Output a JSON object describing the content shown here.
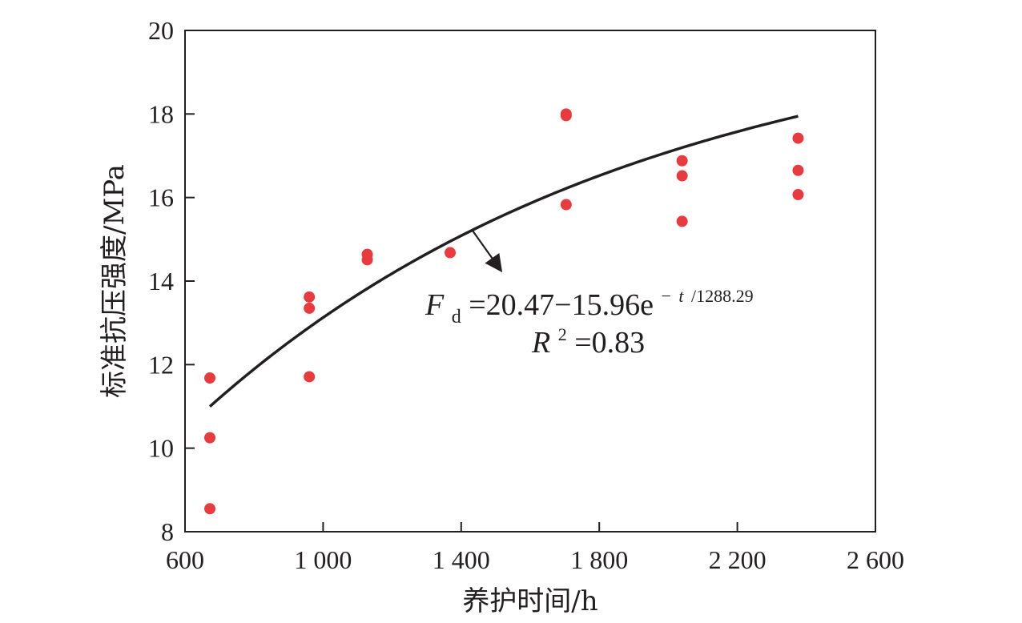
{
  "chart_data": {
    "type": "scatter",
    "title": "",
    "xlabel": "养护时间/h",
    "ylabel": "标准抗压强度/MPa",
    "xlim": [
      600,
      2600
    ],
    "ylim": [
      8,
      20
    ],
    "x_ticks": [
      600,
      1000,
      1400,
      1800,
      2200,
      2600
    ],
    "x_tick_labels": [
      "600",
      "1 000",
      "1 400",
      "1 800",
      "2 200",
      "2 600"
    ],
    "y_ticks": [
      8,
      10,
      12,
      14,
      16,
      18,
      20
    ],
    "y_tick_labels": [
      "8",
      "10",
      "12",
      "14",
      "16",
      "18",
      "20"
    ],
    "grid": false,
    "colors": {
      "points": "#e63b3f",
      "fit_line": "#231f20",
      "axis": "#231f20"
    },
    "series": [
      {
        "type": "scatter",
        "x": [
          672,
          672,
          672,
          960,
          960,
          960,
          1128,
          1128,
          1368,
          1704,
          1704,
          1704,
          2040,
          2040,
          2040,
          2376,
          2376,
          2376
        ],
        "y": [
          11.68,
          10.25,
          8.55,
          13.62,
          13.35,
          11.71,
          14.64,
          14.51,
          14.68,
          18.0,
          17.96,
          15.83,
          16.88,
          16.52,
          15.43,
          17.42,
          16.65,
          16.07
        ]
      },
      {
        "type": "line",
        "fit": {
          "a": 20.47,
          "b": 15.96,
          "tau": 1288.29
        },
        "x_range": [
          672,
          2376
        ]
      }
    ],
    "annotations": {
      "equation": {
        "F": "F",
        "sub": "d",
        "body": "=20.47−15.96e",
        "sup_neg": "−",
        "sup_t": "t",
        "sup_rest": "/1288.29"
      },
      "r2": {
        "R": "R",
        "sup": "2",
        "value": "=0.83"
      }
    }
  }
}
